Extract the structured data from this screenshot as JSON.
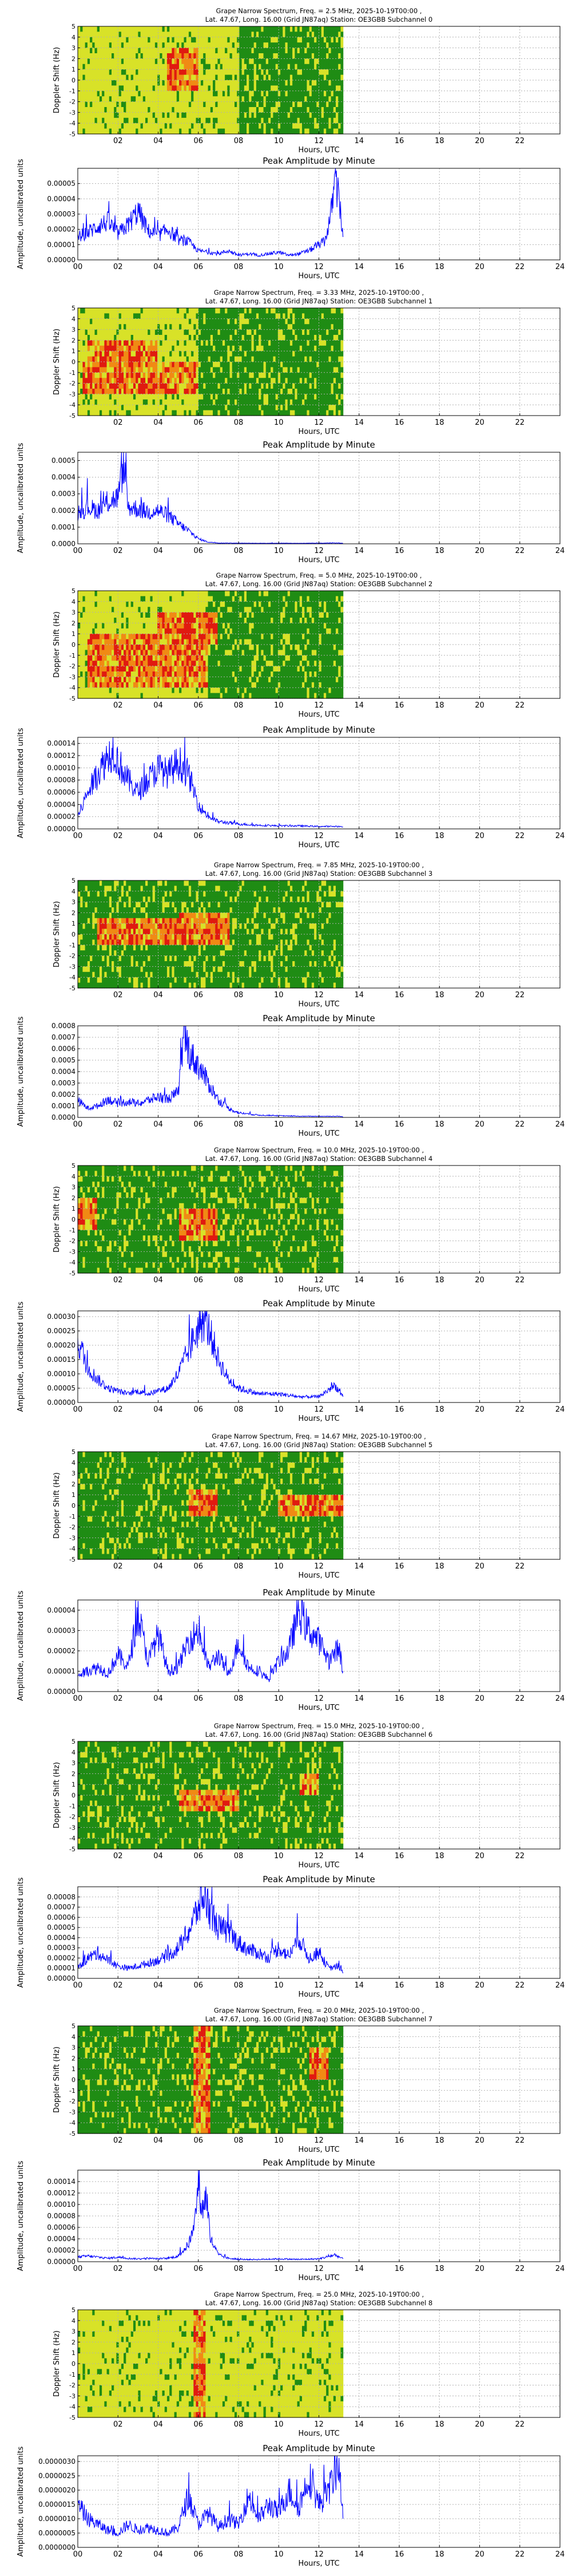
{
  "colors": {
    "line": "#0000ff",
    "grid": "#b0b0b0",
    "spec_yellow": "#d8e228",
    "spec_green": "#1f8c14",
    "spec_orange": "#f08a14",
    "spec_red": "#e01a10"
  },
  "chart_data": [
    {
      "type": "heatmap",
      "title_line1": "Grape Narrow Spectrum, Freq. = 2.5 MHz, 2025-10-19T00:00 ,",
      "title_line2": "Lat.  47.67, Long.  16.00 (Grid JN87aq) Station: OE3GBB Subchannel 0",
      "xlabel": "Hours, UTC",
      "ylabel": "Doppler Shift (Hz)",
      "xticks": [
        "02",
        "04",
        "06",
        "08",
        "10",
        "12",
        "14",
        "16",
        "18",
        "20",
        "22"
      ],
      "yticks": [
        "-5",
        "-4",
        "-3",
        "-2",
        "-1",
        "0",
        "1",
        "2",
        "3",
        "4",
        "5"
      ],
      "xlim": [
        0,
        24
      ],
      "ylim": [
        -5,
        5
      ],
      "data_end_hour": 13.2
    },
    {
      "type": "line",
      "title": "Peak Amplitude by Minute",
      "xlabel": "Hours, UTC",
      "ylabel": "Amplitude, uncalibrated units",
      "xlim": [
        0,
        24
      ],
      "ylim": [
        0,
        6e-05
      ],
      "yticks": [
        "0.00000",
        "0.00001",
        "0.00002",
        "0.00003",
        "0.00004",
        "0.00005"
      ],
      "xticks": [
        "00",
        "02",
        "04",
        "06",
        "08",
        "10",
        "12",
        "14",
        "16",
        "18",
        "20",
        "22",
        "24"
      ],
      "x": [
        0,
        0.5,
        1,
        1.5,
        2,
        2.5,
        3,
        3.5,
        4,
        4.5,
        5,
        5.5,
        6,
        6.5,
        7,
        7.5,
        8,
        8.5,
        9,
        9.5,
        10,
        10.5,
        11,
        11.5,
        12,
        12.3,
        12.6,
        12.8,
        13,
        13.2
      ],
      "y": [
        1.5e-05,
        1.8e-05,
        2.2e-05,
        2.5e-05,
        1.7e-05,
        2.3e-05,
        3.2e-05,
        1.9e-05,
        1.6e-05,
        2e-05,
        1.3e-05,
        1.2e-05,
        6e-06,
        5e-06,
        4e-06,
        6e-06,
        3e-06,
        4e-06,
        3e-06,
        4e-06,
        5e-06,
        3e-06,
        4e-06,
        6e-06,
        1e-05,
        1.2e-05,
        3e-05,
        5.2e-05,
        4e-05,
        1.5e-05
      ]
    },
    {
      "type": "heatmap",
      "title_line1": "Grape Narrow Spectrum, Freq. = 3.33 MHz, 2025-10-19T00:00 ,",
      "title_line2": "Lat.  47.67, Long.  16.00 (Grid JN87aq) Station: OE3GBB Subchannel 1",
      "xlabel": "Hours, UTC",
      "ylabel": "Doppler Shift (Hz)",
      "xticks": [
        "02",
        "04",
        "06",
        "08",
        "10",
        "12",
        "14",
        "16",
        "18",
        "20",
        "22"
      ],
      "yticks": [
        "-5",
        "-4",
        "-3",
        "-2",
        "-1",
        "0",
        "1",
        "2",
        "3",
        "4",
        "5"
      ],
      "xlim": [
        0,
        24
      ],
      "ylim": [
        -5,
        5
      ],
      "data_end_hour": 13.2
    },
    {
      "type": "line",
      "title": "Peak Amplitude by Minute",
      "xlabel": "Hours, UTC",
      "ylabel": "Amplitude, uncalibrated units",
      "xlim": [
        0,
        24
      ],
      "ylim": [
        0,
        0.00055
      ],
      "yticks": [
        "0.0000",
        "0.0001",
        "0.0002",
        "0.0003",
        "0.0004",
        "0.0005"
      ],
      "xticks": [
        "00",
        "02",
        "04",
        "06",
        "08",
        "10",
        "12",
        "14",
        "16",
        "18",
        "20",
        "22",
        "24"
      ],
      "x": [
        0,
        0.5,
        1,
        1.5,
        2,
        2.3,
        2.5,
        3,
        3.5,
        4,
        4.5,
        5,
        5.5,
        6,
        6.5,
        7,
        8,
        9,
        10,
        11,
        12,
        13,
        13.2
      ],
      "y": [
        0.00018,
        0.00022,
        0.0002,
        0.00025,
        0.00028,
        0.00048,
        0.00022,
        0.00021,
        0.00019,
        0.0002,
        0.00017,
        0.00012,
        8e-05,
        3e-05,
        1e-05,
        5e-06,
        4e-06,
        3e-06,
        4e-06,
        3e-06,
        4e-06,
        5e-06,
        3e-06
      ]
    },
    {
      "type": "heatmap",
      "title_line1": "Grape Narrow Spectrum, Freq. = 5.0 MHz, 2025-10-19T00:00 ,",
      "title_line2": "Lat.  47.67, Long.  16.00 (Grid JN87aq) Station: OE3GBB Subchannel 2",
      "xlabel": "Hours, UTC",
      "ylabel": "Doppler Shift (Hz)",
      "xticks": [
        "02",
        "04",
        "06",
        "08",
        "10",
        "12",
        "14",
        "16",
        "18",
        "20",
        "22"
      ],
      "yticks": [
        "-5",
        "-4",
        "-3",
        "-2",
        "-1",
        "0",
        "1",
        "2",
        "3",
        "4",
        "5"
      ],
      "xlim": [
        0,
        24
      ],
      "ylim": [
        -5,
        5
      ],
      "data_end_hour": 13.2
    },
    {
      "type": "line",
      "title": "Peak Amplitude by Minute",
      "xlabel": "Hours, UTC",
      "ylabel": "Amplitude, uncalibrated units",
      "xlim": [
        0,
        24
      ],
      "ylim": [
        0,
        0.00015
      ],
      "yticks": [
        "0.00000",
        "0.00002",
        "0.00004",
        "0.00006",
        "0.00008",
        "0.00010",
        "0.00012",
        "0.00014"
      ],
      "xticks": [
        "00",
        "02",
        "04",
        "06",
        "08",
        "10",
        "12",
        "14",
        "16",
        "18",
        "20",
        "22",
        "24"
      ],
      "x": [
        0,
        0.5,
        1,
        1.5,
        1.8,
        2,
        2.5,
        3,
        3.5,
        4,
        4.5,
        5,
        5.5,
        6,
        6.5,
        7,
        8,
        9,
        10,
        11,
        12,
        13,
        13.2
      ],
      "y": [
        2e-05,
        6e-05,
        9e-05,
        0.00012,
        0.00013,
        0.00011,
        8e-05,
        6e-05,
        8e-05,
        0.0001,
        9e-05,
        0.00011,
        9e-05,
        4e-05,
        2e-05,
        1.2e-05,
        8e-06,
        6e-06,
        5e-06,
        5e-06,
        4e-06,
        4e-06,
        3e-06
      ]
    },
    {
      "type": "heatmap",
      "title_line1": "Grape Narrow Spectrum, Freq. = 7.85 MHz, 2025-10-19T00:00 ,",
      "title_line2": "Lat.  47.67, Long.  16.00 (Grid JN87aq) Station: OE3GBB Subchannel 3",
      "xlabel": "Hours, UTC",
      "ylabel": "Doppler Shift (Hz)",
      "xticks": [
        "02",
        "04",
        "06",
        "08",
        "10",
        "12",
        "14",
        "16",
        "18",
        "20",
        "22"
      ],
      "yticks": [
        "-5",
        "-4",
        "-3",
        "-2",
        "-1",
        "0",
        "1",
        "2",
        "3",
        "4",
        "5"
      ],
      "xlim": [
        0,
        24
      ],
      "ylim": [
        -5,
        5
      ],
      "data_end_hour": 13.2
    },
    {
      "type": "line",
      "title": "Peak Amplitude by Minute",
      "xlabel": "Hours, UTC",
      "ylabel": "Amplitude, uncalibrated units",
      "xlim": [
        0,
        24
      ],
      "ylim": [
        0,
        0.0008
      ],
      "yticks": [
        "0.0000",
        "0.0001",
        "0.0002",
        "0.0003",
        "0.0004",
        "0.0005",
        "0.0006",
        "0.0007",
        "0.0008"
      ],
      "xticks": [
        "00",
        "02",
        "04",
        "06",
        "08",
        "10",
        "12",
        "14",
        "16",
        "18",
        "20",
        "22",
        "24"
      ],
      "x": [
        0,
        0.5,
        1,
        1.5,
        2,
        2.5,
        3,
        3.5,
        4,
        4.5,
        5,
        5.3,
        5.6,
        6,
        6.5,
        7,
        7.5,
        8,
        9,
        10,
        11,
        12,
        13,
        13.2
      ],
      "y": [
        0.00015,
        8e-05,
        0.0001,
        0.00016,
        0.00012,
        0.00014,
        0.00012,
        0.00015,
        0.00018,
        0.00016,
        0.00022,
        0.00072,
        0.00055,
        0.00045,
        0.0003,
        0.00015,
        8e-05,
        4e-05,
        2e-05,
        1.5e-05,
        1e-05,
        1e-05,
        1e-05,
        5e-06
      ]
    },
    {
      "type": "heatmap",
      "title_line1": "Grape Narrow Spectrum, Freq. = 10.0 MHz, 2025-10-19T00:00 ,",
      "title_line2": "Lat.  47.67, Long.  16.00 (Grid JN87aq) Station: OE3GBB Subchannel 4",
      "xlabel": "Hours, UTC",
      "ylabel": "Doppler Shift (Hz)",
      "xticks": [
        "02",
        "04",
        "06",
        "08",
        "10",
        "12",
        "14",
        "16",
        "18",
        "20",
        "22"
      ],
      "yticks": [
        "-5",
        "-4",
        "-3",
        "-2",
        "-1",
        "0",
        "1",
        "2",
        "3",
        "4",
        "5"
      ],
      "xlim": [
        0,
        24
      ],
      "ylim": [
        -5,
        5
      ],
      "data_end_hour": 13.2
    },
    {
      "type": "line",
      "title": "Peak Amplitude by Minute",
      "xlabel": "Hours, UTC",
      "ylabel": "Amplitude, uncalibrated units",
      "xlim": [
        0,
        24
      ],
      "ylim": [
        0,
        0.00032
      ],
      "yticks": [
        "0.00000",
        "0.00005",
        "0.00010",
        "0.00015",
        "0.00020",
        "0.00025",
        "0.00030"
      ],
      "xticks": [
        "00",
        "02",
        "04",
        "06",
        "08",
        "10",
        "12",
        "14",
        "16",
        "18",
        "20",
        "22",
        "24"
      ],
      "x": [
        0,
        0.2,
        0.5,
        1,
        1.5,
        2,
        2.5,
        3,
        3.5,
        4,
        4.5,
        5,
        5.5,
        6,
        6.3,
        6.6,
        7,
        7.5,
        8,
        8.5,
        9,
        10,
        11,
        12,
        12.8,
        13.2
      ],
      "y": [
        0.00022,
        0.00018,
        0.00012,
        8e-05,
        5e-05,
        4e-05,
        3e-05,
        4e-05,
        3e-05,
        4e-05,
        5e-05,
        0.0001,
        0.00018,
        0.00026,
        0.00029,
        0.00024,
        0.00015,
        8e-05,
        5e-05,
        4e-05,
        3e-05,
        3e-05,
        2e-05,
        2e-05,
        6e-05,
        2e-05
      ]
    },
    {
      "type": "heatmap",
      "title_line1": "Grape Narrow Spectrum, Freq. = 14.67 MHz, 2025-10-19T00:00 ,",
      "title_line2": "Lat.  47.67, Long.  16.00 (Grid JN87aq) Station: OE3GBB Subchannel 5",
      "xlabel": "Hours, UTC",
      "ylabel": "Doppler Shift (Hz)",
      "xticks": [
        "02",
        "04",
        "06",
        "08",
        "10",
        "12",
        "14",
        "16",
        "18",
        "20",
        "22"
      ],
      "yticks": [
        "-5",
        "-4",
        "-3",
        "-2",
        "-1",
        "0",
        "1",
        "2",
        "3",
        "4",
        "5"
      ],
      "xlim": [
        0,
        24
      ],
      "ylim": [
        -5,
        5
      ],
      "data_end_hour": 13.2
    },
    {
      "type": "line",
      "title": "Peak Amplitude by Minute",
      "xlabel": "Hours, UTC",
      "ylabel": "Amplitude, uncalibrated units",
      "xlim": [
        0,
        24
      ],
      "ylim": [
        0,
        4.5e-05
      ],
      "yticks": [
        "0.00000",
        "0.00001",
        "0.00002",
        "0.00003",
        "0.00004"
      ],
      "xticks": [
        "00",
        "02",
        "04",
        "06",
        "08",
        "10",
        "12",
        "14",
        "16",
        "18",
        "20",
        "22",
        "24"
      ],
      "x": [
        0,
        0.5,
        1,
        1.5,
        2,
        2.5,
        3,
        3.5,
        4,
        4.5,
        5,
        5.5,
        6,
        6.5,
        7,
        7.5,
        8,
        8.5,
        9,
        9.5,
        10,
        10.5,
        11,
        11.5,
        12,
        12.5,
        13,
        13.2
      ],
      "y": [
        8e-06,
        1e-05,
        1.2e-05,
        9e-06,
        1.8e-05,
        1.2e-05,
        3.8e-05,
        1.5e-05,
        2.8e-05,
        1e-05,
        1.2e-05,
        2.5e-05,
        3e-05,
        1.2e-05,
        1.8e-05,
        8e-06,
        2.4e-05,
        1.2e-05,
        1e-05,
        6e-06,
        1.5e-05,
        2e-05,
        4e-05,
        3e-05,
        2.5e-05,
        1.5e-05,
        2.2e-05,
        1e-05
      ]
    },
    {
      "type": "heatmap",
      "title_line1": "Grape Narrow Spectrum, Freq. = 15.0 MHz, 2025-10-19T00:00 ,",
      "title_line2": "Lat.  47.67, Long.  16.00 (Grid JN87aq) Station: OE3GBB Subchannel 6",
      "xlabel": "Hours, UTC",
      "ylabel": "Doppler Shift (Hz)",
      "xticks": [
        "02",
        "04",
        "06",
        "08",
        "10",
        "12",
        "14",
        "16",
        "18",
        "20",
        "22"
      ],
      "yticks": [
        "-5",
        "-4",
        "-3",
        "-2",
        "-1",
        "0",
        "1",
        "2",
        "3",
        "4",
        "5"
      ],
      "xlim": [
        0,
        24
      ],
      "ylim": [
        -5,
        5
      ],
      "data_end_hour": 13.2
    },
    {
      "type": "line",
      "title": "Peak Amplitude by Minute",
      "xlabel": "Hours, UTC",
      "ylabel": "Amplitude, uncalibrated units",
      "xlim": [
        0,
        24
      ],
      "ylim": [
        0,
        9e-05
      ],
      "yticks": [
        "0.00000",
        "0.00001",
        "0.00002",
        "0.00003",
        "0.00004",
        "0.00005",
        "0.00006",
        "0.00007",
        "0.00008"
      ],
      "xticks": [
        "00",
        "02",
        "04",
        "06",
        "08",
        "10",
        "12",
        "14",
        "16",
        "18",
        "20",
        "22",
        "24"
      ],
      "x": [
        0,
        0.5,
        1,
        1.5,
        2,
        2.5,
        3,
        3.5,
        4,
        4.5,
        5,
        5.5,
        6,
        6.3,
        6.6,
        7,
        7.5,
        8,
        8.5,
        9,
        9.5,
        10,
        10.5,
        11,
        11.5,
        12,
        12.5,
        13,
        13.2
      ],
      "y": [
        1e-05,
        2e-05,
        2.5e-05,
        1.8e-05,
        1.2e-05,
        1e-05,
        1.2e-05,
        1.5e-05,
        1.8e-05,
        2.2e-05,
        3e-05,
        4.5e-05,
        7e-05,
        8.2e-05,
        6.5e-05,
        5e-05,
        4.5e-05,
        3.5e-05,
        2.8e-05,
        2.5e-05,
        2e-05,
        3e-05,
        2.2e-05,
        4e-05,
        2e-05,
        2.5e-05,
        1e-05,
        1.2e-05,
        5e-06
      ]
    },
    {
      "type": "heatmap",
      "title_line1": "Grape Narrow Spectrum, Freq. = 20.0 MHz, 2025-10-19T00:00 ,",
      "title_line2": "Lat.  47.67, Long.  16.00 (Grid JN87aq) Station: OE3GBB Subchannel 7",
      "xlabel": "Hours, UTC",
      "ylabel": "Doppler Shift (Hz)",
      "xticks": [
        "02",
        "04",
        "06",
        "08",
        "10",
        "12",
        "14",
        "16",
        "18",
        "20",
        "22"
      ],
      "yticks": [
        "-5",
        "-4",
        "-3",
        "-2",
        "-1",
        "0",
        "1",
        "2",
        "3",
        "4",
        "5"
      ],
      "xlim": [
        0,
        24
      ],
      "ylim": [
        -5,
        5
      ],
      "data_end_hour": 13.2
    },
    {
      "type": "line",
      "title": "Peak Amplitude by Minute",
      "xlabel": "Hours, UTC",
      "ylabel": "Amplitude, uncalibrated units",
      "xlim": [
        0,
        24
      ],
      "ylim": [
        0,
        0.00016
      ],
      "yticks": [
        "0.00000",
        "0.00002",
        "0.00004",
        "0.00006",
        "0.00008",
        "0.00010",
        "0.00012",
        "0.00014"
      ],
      "xticks": [
        "00",
        "02",
        "04",
        "06",
        "08",
        "10",
        "12",
        "14",
        "16",
        "18",
        "20",
        "22",
        "24"
      ],
      "x": [
        0,
        0.5,
        1,
        1.5,
        2,
        2.5,
        3,
        3.5,
        4,
        4.5,
        5,
        5.5,
        5.8,
        6,
        6.2,
        6.4,
        6.6,
        7,
        7.5,
        8,
        9,
        10,
        11,
        12,
        12.8,
        13.2
      ],
      "y": [
        8e-06,
        1e-05,
        8e-06,
        6e-06,
        8e-06,
        6e-06,
        5e-06,
        6e-06,
        5e-06,
        6e-06,
        1e-05,
        3e-05,
        6e-05,
        0.00014,
        9e-05,
        0.00012,
        4e-05,
        1.2e-05,
        6e-06,
        4e-06,
        4e-06,
        5e-06,
        4e-06,
        5e-06,
        1.2e-05,
        5e-06
      ]
    },
    {
      "type": "heatmap",
      "title_line1": "Grape Narrow Spectrum, Freq. = 25.0 MHz, 2025-10-19T00:00 ,",
      "title_line2": "Lat.  47.67, Long.  16.00 (Grid JN87aq) Station: OE3GBB Subchannel 8",
      "xlabel": "Hours, UTC",
      "ylabel": "Doppler Shift (Hz)",
      "xticks": [
        "02",
        "04",
        "06",
        "08",
        "10",
        "12",
        "14",
        "16",
        "18",
        "20",
        "22"
      ],
      "yticks": [
        "-5",
        "-4",
        "-3",
        "-2",
        "-1",
        "0",
        "1",
        "2",
        "3",
        "4",
        "5"
      ],
      "xlim": [
        0,
        24
      ],
      "ylim": [
        -5,
        5
      ],
      "data_end_hour": 13.2
    },
    {
      "type": "line",
      "title": "Peak Amplitude by Minute",
      "xlabel": "Hours, UTC",
      "ylabel": "Amplitude, uncalibrated units",
      "xlim": [
        0,
        24
      ],
      "ylim": [
        0,
        3.2e-06
      ],
      "yticks": [
        "0.0000000",
        "0.0000005",
        "0.0000010",
        "0.0000015",
        "0.0000020",
        "0.0000025",
        "0.0000030"
      ],
      "xticks": [
        "00",
        "02",
        "04",
        "06",
        "08",
        "10",
        "12",
        "14",
        "16",
        "18",
        "20",
        "22",
        "24"
      ],
      "x": [
        0,
        0.5,
        1,
        1.5,
        2,
        2.5,
        3,
        3.5,
        4,
        4.5,
        5,
        5.5,
        6,
        6.5,
        7,
        7.5,
        8,
        8.5,
        9,
        9.5,
        10,
        10.5,
        11,
        11.5,
        12,
        12.5,
        13,
        13.2
      ],
      "y": [
        1.5e-06,
        1e-06,
        8e-07,
        6e-07,
        5e-07,
        8e-07,
        6e-07,
        7e-07,
        6e-07,
        5e-07,
        7e-07,
        1.8e-06,
        8e-07,
        1.2e-06,
        7e-07,
        1e-06,
        8e-07,
        1.8e-06,
        1e-06,
        1.5e-06,
        1.2e-06,
        2e-06,
        1.4e-06,
        2.5e-06,
        1.5e-06,
        2e-06,
        3e-06,
        1e-06
      ]
    }
  ]
}
